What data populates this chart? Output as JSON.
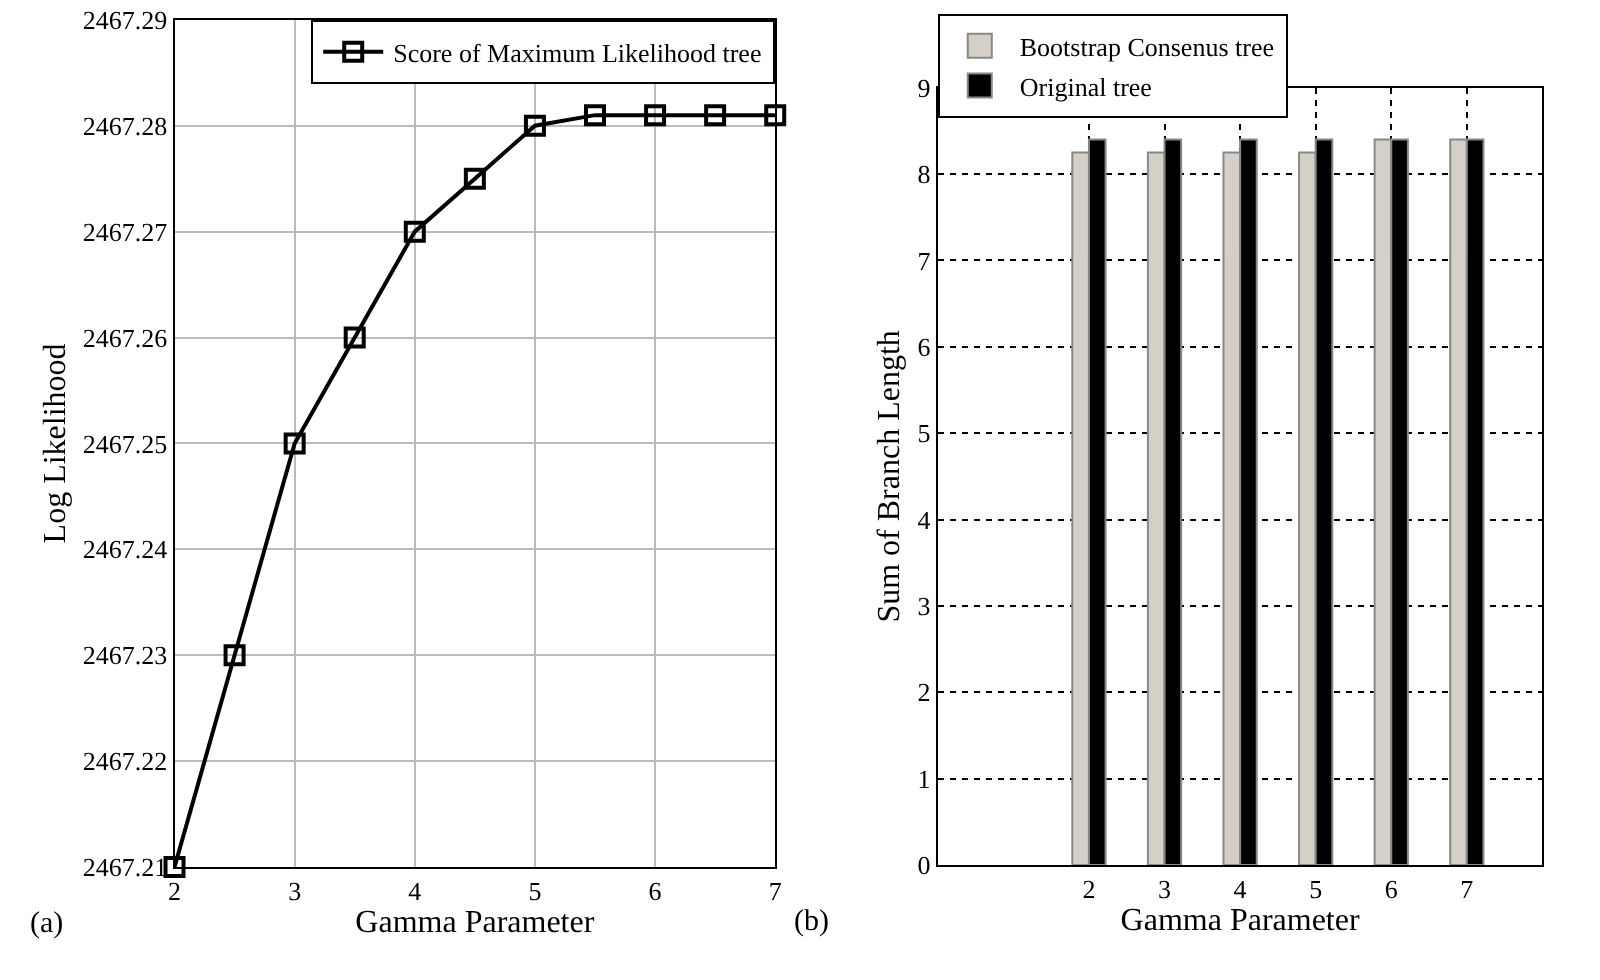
{
  "chart_data": [
    {
      "type": "line",
      "xlabel": "Gamma Parameter",
      "ylabel": "Log Likelihood",
      "annotations": [
        "(a)"
      ],
      "x": [
        2,
        2.5,
        3,
        3.5,
        4,
        4.5,
        5,
        5.5,
        6,
        6.5,
        7
      ],
      "series": [
        {
          "name": "Score of Maximum Likelihood tree",
          "color": "#000000",
          "values": [
            2467.21,
            2467.23,
            2467.25,
            2467.26,
            2467.27,
            2467.275,
            2467.28,
            2467.281,
            2467.281,
            2467.281,
            2467.281
          ]
        }
      ],
      "xlim": [
        2,
        7
      ],
      "xticks": [
        2,
        3,
        4,
        5,
        6,
        7
      ],
      "ylim": [
        2467.21,
        2467.29
      ],
      "yticks": [
        2467.21,
        2467.22,
        2467.23,
        2467.24,
        2467.25,
        2467.26,
        2467.27,
        2467.28,
        2467.29
      ],
      "grid": true,
      "legend": "top right",
      "marker": "square",
      "line_style": "solid"
    },
    {
      "type": "bar",
      "xlabel": "Gamma Parameter",
      "ylabel": "Sum of Branch Length",
      "annotations": [
        "(b)"
      ],
      "x": [
        2,
        3,
        4,
        5,
        6,
        7
      ],
      "series": [
        {
          "name": "Bootstrap Consenus tree",
          "color": "#d4d0c8",
          "values": [
            8.25,
            8.25,
            8.25,
            8.25,
            8.4,
            8.4
          ]
        },
        {
          "name": "Original tree",
          "color": "#000000",
          "values": [
            8.4,
            8.4,
            8.4,
            8.4,
            8.4,
            8.4
          ]
        }
      ],
      "xlim": [
        0,
        8
      ],
      "xticks": [
        2,
        3,
        4,
        5,
        6,
        7
      ],
      "ylim": [
        0,
        9
      ],
      "yticks": [
        0,
        1,
        2,
        3,
        4,
        5,
        6,
        7,
        8,
        9
      ],
      "grid": true,
      "legend": "top"
    }
  ]
}
